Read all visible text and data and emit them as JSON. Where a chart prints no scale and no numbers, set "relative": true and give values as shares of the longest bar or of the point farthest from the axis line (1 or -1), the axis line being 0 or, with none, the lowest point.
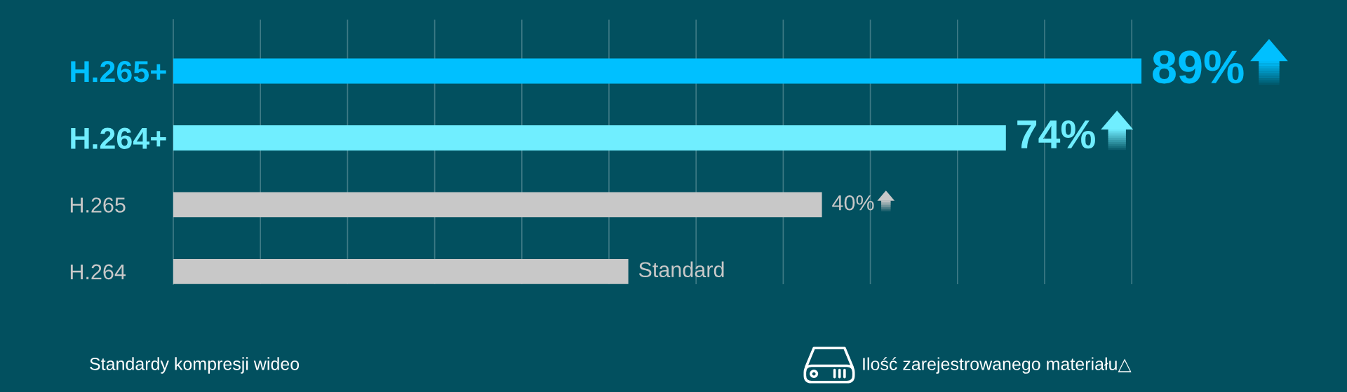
{
  "chart_data": {
    "type": "bar",
    "orientation": "horizontal",
    "relative": true,
    "categories": [
      "H.265+",
      "H.264+",
      "H.265",
      "H.264"
    ],
    "values": [
      1,
      0.86,
      0.67,
      0.47
    ],
    "colors": [
      "#00c0ff",
      "#70eeff",
      "#c8c8c8",
      "#c8c8c8"
    ],
    "ref_lines": [
      {
        "axis": "x",
        "value": 0.09,
        "color": "#3f7b86"
      },
      {
        "axis": "x",
        "value": 0.18,
        "color": "#3f7b86"
      },
      {
        "axis": "x",
        "value": 0.27,
        "color": "#3f7b86"
      },
      {
        "axis": "x",
        "value": 0.36,
        "color": "#3f7b86"
      },
      {
        "axis": "x",
        "value": 0.45,
        "color": "#3f7b86"
      },
      {
        "axis": "x",
        "value": 0.54,
        "color": "#3f7b86"
      },
      {
        "axis": "x",
        "value": 0.63,
        "color": "#3f7b86"
      },
      {
        "axis": "x",
        "value": 0.72,
        "color": "#3f7b86"
      },
      {
        "axis": "x",
        "value": 0.81,
        "color": "#3f7b86"
      },
      {
        "axis": "x",
        "value": 0.9,
        "color": "#3f7b86"
      },
      {
        "axis": "x",
        "value": 0.99,
        "color": "#3f7b86"
      }
    ],
    "annotations": [
      {
        "text": "89%",
        "x": 1,
        "y": "H.265+"
      },
      {
        "text": "74%",
        "x": 0.86,
        "y": "H.264+"
      },
      {
        "text": "40%",
        "x": 0.67,
        "y": "H.265"
      },
      {
        "text": "Standard",
        "x": 0.47,
        "y": "H.264"
      }
    ],
    "xlabel": "Ilość zarejestrowanego materiału△",
    "ylabel": "Standardy kompresji wideo"
  }
}
